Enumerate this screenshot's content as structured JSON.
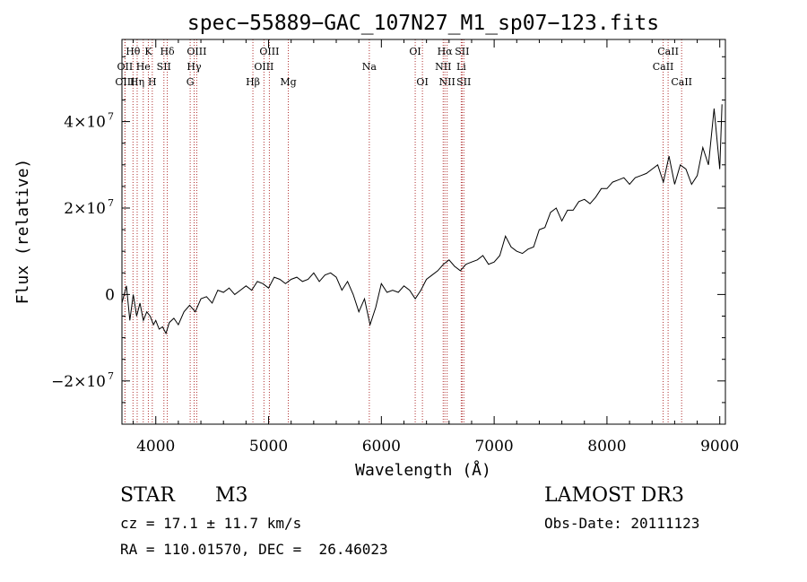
{
  "chart_data": {
    "type": "line",
    "title": "spec−55889−GAC_107N27_M1_sp07−123.fits",
    "xlabel": "Wavelength (Å)",
    "ylabel": "Flux (relative)",
    "xlim": [
      3700,
      9050
    ],
    "ylim": [
      -30000000,
      59000000
    ],
    "x_ticks": [
      {
        "value": 4000,
        "label": "4000"
      },
      {
        "value": 5000,
        "label": "5000"
      },
      {
        "value": 6000,
        "label": "6000"
      },
      {
        "value": 7000,
        "label": "7000"
      },
      {
        "value": 8000,
        "label": "8000"
      },
      {
        "value": 9000,
        "label": "9000"
      }
    ],
    "y_ticks": [
      {
        "value": -20000000,
        "label": "−2×10",
        "exp": "7"
      },
      {
        "value": 0,
        "label": "0",
        "exp": ""
      },
      {
        "value": 20000000,
        "label": "2×10",
        "exp": "7"
      },
      {
        "value": 40000000,
        "label": "4×10",
        "exp": "7"
      }
    ],
    "lines": [
      {
        "label": "Hθ",
        "x": 3798,
        "row": 1
      },
      {
        "label": "OII",
        "x": 3727,
        "row": 2
      },
      {
        "label": "OIII",
        "x": 3727,
        "row": 3
      },
      {
        "label": "K",
        "x": 3934,
        "row": 1
      },
      {
        "label": "He",
        "x": 3889,
        "row": 2
      },
      {
        "label": "Hη",
        "x": 3835,
        "row": 3
      },
      {
        "label": "SII",
        "x": 4072,
        "row": 2
      },
      {
        "label": "H",
        "x": 3969,
        "row": 3
      },
      {
        "label": "Hδ",
        "x": 4102,
        "row": 1
      },
      {
        "label": "OIII",
        "x": 4363,
        "row": 1
      },
      {
        "label": "Hγ",
        "x": 4340,
        "row": 2
      },
      {
        "label": "G",
        "x": 4305,
        "row": 3
      },
      {
        "label": "OIII",
        "x": 5007,
        "row": 1
      },
      {
        "label": "OIII",
        "x": 4959,
        "row": 2
      },
      {
        "label": "Hβ",
        "x": 4861,
        "row": 3
      },
      {
        "label": "Mg",
        "x": 5175,
        "row": 3
      },
      {
        "label": "Na",
        "x": 5893,
        "row": 2
      },
      {
        "label": "OI",
        "x": 6300,
        "row": 1
      },
      {
        "label": "OI",
        "x": 6364,
        "row": 3
      },
      {
        "label": "Hα",
        "x": 6563,
        "row": 1
      },
      {
        "label": "SII",
        "x": 6716,
        "row": 1
      },
      {
        "label": "NII",
        "x": 6548,
        "row": 2
      },
      {
        "label": "Li",
        "x": 6708,
        "row": 2
      },
      {
        "label": "NII",
        "x": 6583,
        "row": 3
      },
      {
        "label": "SII",
        "x": 6731,
        "row": 3
      },
      {
        "label": "CaII",
        "x": 8542,
        "row": 1
      },
      {
        "label": "CaII",
        "x": 8498,
        "row": 2
      },
      {
        "label": "CaII",
        "x": 8662,
        "row": 3
      }
    ],
    "spectrum": {
      "name": "",
      "x": [
        3700,
        3740,
        3770,
        3800,
        3830,
        3860,
        3890,
        3920,
        3950,
        3980,
        4000,
        4030,
        4060,
        4090,
        4120,
        4160,
        4200,
        4250,
        4300,
        4350,
        4400,
        4450,
        4500,
        4550,
        4600,
        4650,
        4700,
        4750,
        4800,
        4850,
        4900,
        4950,
        5000,
        5050,
        5100,
        5150,
        5200,
        5250,
        5300,
        5350,
        5400,
        5450,
        5500,
        5550,
        5600,
        5650,
        5700,
        5750,
        5800,
        5850,
        5900,
        5950,
        6000,
        6050,
        6100,
        6150,
        6200,
        6250,
        6300,
        6350,
        6400,
        6450,
        6500,
        6550,
        6600,
        6650,
        6700,
        6750,
        6800,
        6850,
        6900,
        6950,
        7000,
        7050,
        7100,
        7150,
        7200,
        7250,
        7300,
        7350,
        7400,
        7450,
        7500,
        7550,
        7600,
        7650,
        7700,
        7750,
        7800,
        7850,
        7900,
        7950,
        8000,
        8050,
        8100,
        8150,
        8200,
        8250,
        8300,
        8350,
        8400,
        8450,
        8500,
        8550,
        8600,
        8650,
        8700,
        8750,
        8800,
        8850,
        8900,
        8950,
        9000,
        9020
      ],
      "y": [
        -2000000,
        2000000,
        -6000000,
        0,
        -5000000,
        -2000000,
        -6000000,
        -4000000,
        -5000000,
        -7000000,
        -6000000,
        -8000000,
        -7500000,
        -9000000,
        -6500000,
        -5500000,
        -7000000,
        -4000000,
        -2500000,
        -4000000,
        -1000000,
        -500000,
        -2000000,
        1000000,
        500000,
        1500000,
        0,
        1000000,
        2000000,
        1000000,
        3000000,
        2500000,
        1500000,
        4000000,
        3500000,
        2500000,
        3500000,
        4000000,
        3000000,
        3500000,
        5000000,
        3000000,
        4500000,
        5000000,
        4000000,
        1000000,
        3000000,
        0,
        -4000000,
        -1000000,
        -7000000,
        -3000000,
        2500000,
        500000,
        1000000,
        500000,
        2000000,
        1000000,
        -1000000,
        1000000,
        3500000,
        4500000,
        5500000,
        7000000,
        8000000,
        6500000,
        5500000,
        7000000,
        7500000,
        8000000,
        9000000,
        7000000,
        7500000,
        9000000,
        13500000,
        11000000,
        10000000,
        9500000,
        10500000,
        11000000,
        15000000,
        15500000,
        19000000,
        20000000,
        17000000,
        19500000,
        19500000,
        21500000,
        22000000,
        21000000,
        22500000,
        24500000,
        24500000,
        26000000,
        26500000,
        27000000,
        25500000,
        27000000,
        27500000,
        28000000,
        29000000,
        30000000,
        26000000,
        32000000,
        25500000,
        30000000,
        29000000,
        25500000,
        27500000,
        34000000,
        30000000,
        43000000,
        29000000,
        44000000
      ]
    }
  },
  "info": {
    "object_class": "STAR",
    "subclass": "M3",
    "cz": "cz = 17.1 ± 11.7 km/s",
    "coords": "RA = 110.01570, DEC =  26.46023",
    "survey": "LAMOST DR3",
    "obs_date": "Obs-Date: 20111123"
  }
}
